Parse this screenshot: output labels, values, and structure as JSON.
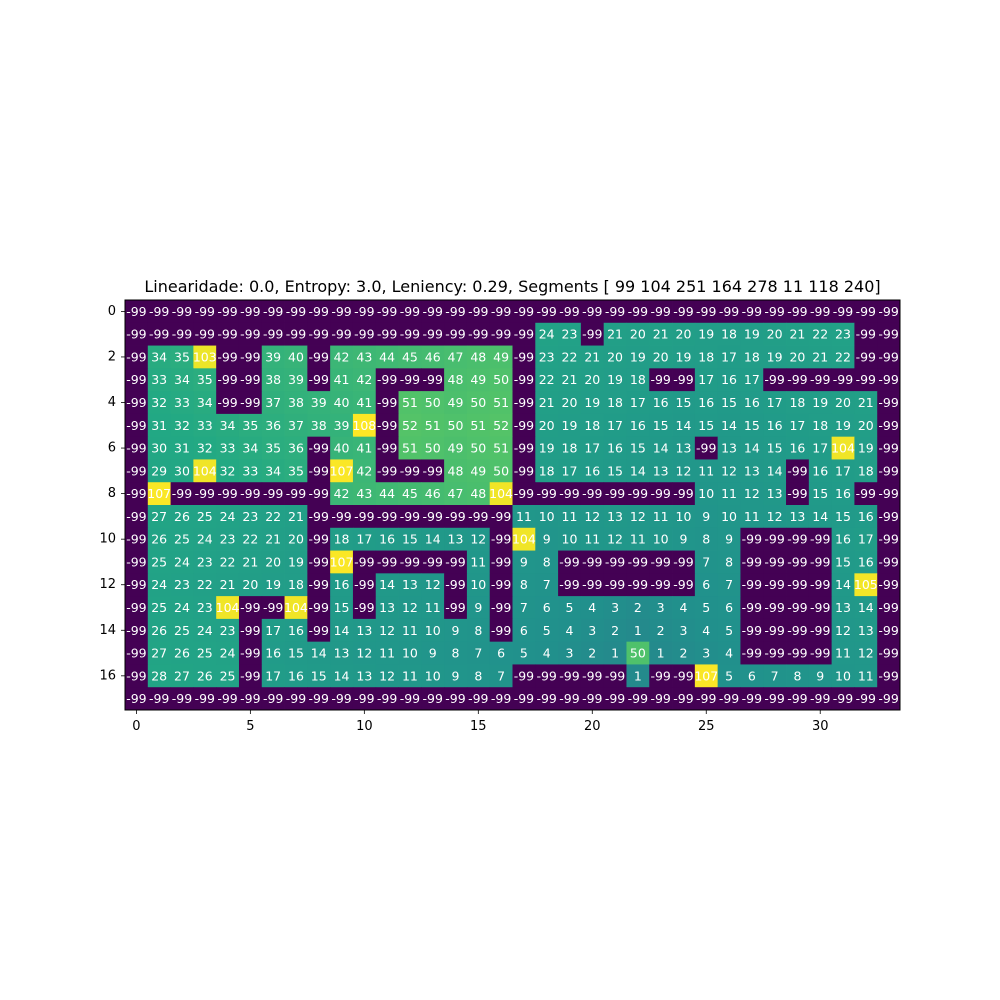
{
  "chart_data": {
    "type": "heatmap",
    "title": "Linearidade: 0.0, Entropy: 3.0, Leniency: 0.29, Segments [ 99 104 251 164 278  11 118 240]",
    "xlabel": "",
    "ylabel": "",
    "x_ticks": [
      0,
      5,
      10,
      15,
      20,
      25,
      30
    ],
    "y_ticks": [
      0,
      2,
      4,
      6,
      8,
      10,
      12,
      14,
      16
    ],
    "colormap": "viridis",
    "vmin": -99,
    "vmax": 108,
    "colors": {
      "low": "#440154",
      "high": "#fde725"
    },
    "grid": false,
    "annotated": true,
    "values": [
      [
        -99,
        -99,
        -99,
        -99,
        -99,
        -99,
        -99,
        -99,
        -99,
        -99,
        -99,
        -99,
        -99,
        -99,
        -99,
        -99,
        -99,
        -99,
        -99,
        -99,
        -99,
        -99,
        -99,
        -99,
        -99,
        -99,
        -99,
        -99,
        -99,
        -99,
        -99,
        -99,
        -99,
        -99
      ],
      [
        -99,
        -99,
        -99,
        -99,
        -99,
        -99,
        -99,
        -99,
        -99,
        -99,
        -99,
        -99,
        -99,
        -99,
        -99,
        -99,
        -99,
        -99,
        24,
        23,
        -99,
        21,
        20,
        21,
        20,
        19,
        18,
        19,
        20,
        21,
        22,
        23,
        -99,
        -99
      ],
      [
        -99,
        34,
        35,
        103,
        -99,
        -99,
        39,
        40,
        -99,
        42,
        43,
        44,
        45,
        46,
        47,
        48,
        49,
        -99,
        23,
        22,
        21,
        20,
        19,
        20,
        19,
        18,
        17,
        18,
        19,
        20,
        21,
        22,
        -99,
        -99
      ],
      [
        -99,
        33,
        34,
        35,
        -99,
        -99,
        38,
        39,
        -99,
        41,
        42,
        -99,
        -99,
        -99,
        48,
        49,
        50,
        -99,
        22,
        21,
        20,
        19,
        18,
        -99,
        -99,
        17,
        16,
        17,
        -99,
        -99,
        -99,
        -99,
        -99,
        -99
      ],
      [
        -99,
        32,
        33,
        34,
        -99,
        -99,
        37,
        38,
        39,
        40,
        41,
        -99,
        51,
        50,
        49,
        50,
        51,
        -99,
        21,
        20,
        19,
        18,
        17,
        16,
        15,
        16,
        15,
        16,
        17,
        18,
        19,
        20,
        21,
        -99
      ],
      [
        -99,
        31,
        32,
        33,
        34,
        35,
        36,
        37,
        38,
        39,
        108,
        -99,
        52,
        51,
        50,
        51,
        52,
        -99,
        20,
        19,
        18,
        17,
        16,
        15,
        14,
        15,
        14,
        15,
        16,
        17,
        18,
        19,
        20,
        -99
      ],
      [
        -99,
        30,
        31,
        32,
        33,
        34,
        35,
        36,
        -99,
        40,
        41,
        -99,
        51,
        50,
        49,
        50,
        51,
        -99,
        19,
        18,
        17,
        16,
        15,
        14,
        13,
        -99,
        13,
        14,
        15,
        16,
        17,
        104,
        19,
        -99
      ],
      [
        -99,
        29,
        30,
        104,
        32,
        33,
        34,
        35,
        -99,
        107,
        42,
        -99,
        -99,
        -99,
        48,
        49,
        50,
        -99,
        18,
        17,
        16,
        15,
        14,
        13,
        12,
        11,
        12,
        13,
        14,
        -99,
        16,
        17,
        18,
        -99
      ],
      [
        -99,
        107,
        -99,
        -99,
        -99,
        -99,
        -99,
        -99,
        -99,
        42,
        43,
        44,
        45,
        46,
        47,
        48,
        104,
        -99,
        -99,
        -99,
        -99,
        -99,
        -99,
        -99,
        -99,
        10,
        11,
        12,
        13,
        -99,
        15,
        16,
        -99,
        -99
      ],
      [
        -99,
        27,
        26,
        25,
        24,
        23,
        22,
        21,
        -99,
        -99,
        -99,
        -99,
        -99,
        -99,
        -99,
        -99,
        -99,
        11,
        10,
        11,
        12,
        13,
        12,
        11,
        10,
        9,
        10,
        11,
        12,
        13,
        14,
        15,
        16,
        -99
      ],
      [
        -99,
        26,
        25,
        24,
        23,
        22,
        21,
        20,
        -99,
        18,
        17,
        16,
        15,
        14,
        13,
        12,
        -99,
        104,
        9,
        10,
        11,
        12,
        11,
        10,
        9,
        8,
        9,
        -99,
        -99,
        -99,
        -99,
        16,
        17,
        -99
      ],
      [
        -99,
        25,
        24,
        23,
        22,
        21,
        20,
        19,
        -99,
        107,
        -99,
        -99,
        -99,
        -99,
        -99,
        11,
        -99,
        9,
        8,
        -99,
        -99,
        -99,
        -99,
        -99,
        -99,
        7,
        8,
        -99,
        -99,
        -99,
        -99,
        15,
        16,
        -99
      ],
      [
        -99,
        24,
        23,
        22,
        21,
        20,
        19,
        18,
        -99,
        16,
        -99,
        14,
        13,
        12,
        -99,
        10,
        -99,
        8,
        7,
        -99,
        -99,
        -99,
        -99,
        -99,
        -99,
        6,
        7,
        -99,
        -99,
        -99,
        -99,
        14,
        105,
        -99
      ],
      [
        -99,
        25,
        24,
        23,
        104,
        -99,
        -99,
        104,
        -99,
        15,
        -99,
        13,
        12,
        11,
        -99,
        9,
        -99,
        7,
        6,
        5,
        4,
        3,
        2,
        3,
        4,
        5,
        6,
        -99,
        -99,
        -99,
        -99,
        13,
        14,
        -99
      ],
      [
        -99,
        26,
        25,
        24,
        23,
        -99,
        17,
        16,
        -99,
        14,
        13,
        12,
        11,
        10,
        9,
        8,
        -99,
        6,
        5,
        4,
        3,
        2,
        1,
        2,
        3,
        4,
        5,
        -99,
        -99,
        -99,
        -99,
        12,
        13,
        -99
      ],
      [
        -99,
        27,
        26,
        25,
        24,
        -99,
        16,
        15,
        14,
        13,
        12,
        11,
        10,
        9,
        8,
        7,
        6,
        5,
        4,
        3,
        2,
        1,
        50,
        1,
        2,
        3,
        4,
        -99,
        -99,
        -99,
        -99,
        11,
        12,
        -99
      ],
      [
        -99,
        28,
        27,
        26,
        25,
        -99,
        17,
        16,
        15,
        14,
        13,
        12,
        11,
        10,
        9,
        8,
        7,
        -99,
        -99,
        -99,
        -99,
        -99,
        1,
        -99,
        -99,
        107,
        5,
        6,
        7,
        8,
        9,
        10,
        11,
        -99
      ],
      [
        -99,
        -99,
        -99,
        -99,
        -99,
        -99,
        -99,
        -99,
        -99,
        -99,
        -99,
        -99,
        -99,
        -99,
        -99,
        -99,
        -99,
        -99,
        -99,
        -99,
        -99,
        -99,
        -99,
        -99,
        -99,
        -99,
        -99,
        -99,
        -99,
        -99,
        -99,
        -99,
        -99,
        -99
      ]
    ]
  }
}
